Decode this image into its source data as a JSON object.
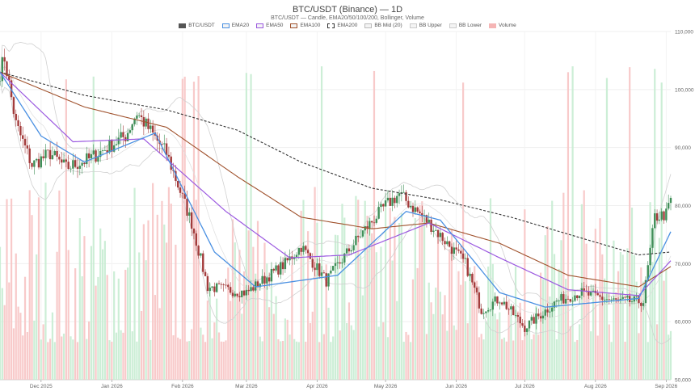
{
  "chart_data": {
    "type": "candlestick",
    "title": "BTC/USDT (Binance) — 1D",
    "subtitle": "BTC/USDT — Candle, EMA20/50/100/200, Bollinger, Volume",
    "legend": [
      {
        "label": "BTC/USDT",
        "color": "#555555",
        "style": "fill"
      },
      {
        "label": "EMA20",
        "color": "#4a90e2",
        "style": "line"
      },
      {
        "label": "EMA50",
        "color": "#9b59e0",
        "style": "line"
      },
      {
        "label": "EMA100",
        "color": "#a0522d",
        "style": "line"
      },
      {
        "label": "EMA200",
        "color": "#333333",
        "style": "dashed"
      },
      {
        "label": "BB Mid (20)",
        "color": "#bbbbbb",
        "style": "line"
      },
      {
        "label": "BB Upper",
        "color": "#cccccc",
        "style": "line"
      },
      {
        "label": "BB Lower",
        "color": "#cccccc",
        "style": "line"
      },
      {
        "label": "Volume",
        "color": "#f5b5b5",
        "style": "fill"
      }
    ],
    "y_axis": {
      "ticks": [
        "50,000",
        "60,000",
        "70,000",
        "80,000",
        "90,000",
        "100,000",
        "110,000"
      ],
      "range": [
        50000,
        110000
      ],
      "position": "right"
    },
    "x_axis": {
      "ticks": [
        "Dec 2025",
        "Jan 2026",
        "Feb 2026",
        "Mar 2026",
        "Apr 2026",
        "May 2026",
        "Jun 2026",
        "Jul 2026",
        "Aug 2026",
        "Sep 2026"
      ],
      "range": [
        "2025-11-13",
        "2026-09-03"
      ]
    },
    "key_prices": [
      {
        "date": "2025-11-13",
        "close": 103000
      },
      {
        "date": "2025-11-15",
        "close": 105500
      },
      {
        "date": "2025-11-20",
        "close": 94000
      },
      {
        "date": "2025-11-27",
        "close": 87000
      },
      {
        "date": "2025-12-05",
        "close": 89000
      },
      {
        "date": "2025-12-12",
        "close": 86500
      },
      {
        "date": "2025-12-22",
        "close": 88000
      },
      {
        "date": "2026-01-07",
        "close": 92000
      },
      {
        "date": "2026-01-12",
        "close": 96000
      },
      {
        "date": "2026-01-25",
        "close": 89000
      },
      {
        "date": "2026-02-05",
        "close": 77000
      },
      {
        "date": "2026-02-12",
        "close": 66000
      },
      {
        "date": "2026-03-01",
        "close": 65000
      },
      {
        "date": "2026-03-18",
        "close": 70000
      },
      {
        "date": "2026-03-25",
        "close": 73000
      },
      {
        "date": "2026-04-05",
        "close": 67000
      },
      {
        "date": "2026-04-20",
        "close": 75000
      },
      {
        "date": "2026-05-01",
        "close": 80000
      },
      {
        "date": "2026-05-07",
        "close": 82000
      },
      {
        "date": "2026-05-20",
        "close": 77000
      },
      {
        "date": "2026-06-05",
        "close": 70000
      },
      {
        "date": "2026-06-12",
        "close": 62000
      },
      {
        "date": "2026-06-20",
        "close": 64000
      },
      {
        "date": "2026-07-01",
        "close": 59000
      },
      {
        "date": "2026-07-15",
        "close": 63500
      },
      {
        "date": "2026-07-25",
        "close": 65000
      },
      {
        "date": "2026-08-10",
        "close": 63500
      },
      {
        "date": "2026-08-22",
        "close": 63500
      },
      {
        "date": "2026-08-27",
        "close": 78000
      },
      {
        "date": "2026-09-01",
        "close": 78500
      },
      {
        "date": "2026-09-03",
        "close": 81000
      }
    ],
    "ema_values": {
      "EMA20": [
        {
          "date": "2025-11-13",
          "value": 103000
        },
        {
          "date": "2025-12-01",
          "value": 92000
        },
        {
          "date": "2025-12-20",
          "value": 87500
        },
        {
          "date": "2026-01-20",
          "value": 92500
        },
        {
          "date": "2026-02-15",
          "value": 72000
        },
        {
          "date": "2026-03-05",
          "value": 66000
        },
        {
          "date": "2026-04-10",
          "value": 68000
        },
        {
          "date": "2026-05-10",
          "value": 79000
        },
        {
          "date": "2026-05-25",
          "value": 77500
        },
        {
          "date": "2026-06-20",
          "value": 65000
        },
        {
          "date": "2026-07-10",
          "value": 62500
        },
        {
          "date": "2026-08-20",
          "value": 64000
        },
        {
          "date": "2026-09-03",
          "value": 75500
        }
      ],
      "EMA50": [
        {
          "date": "2025-11-13",
          "value": 103000
        },
        {
          "date": "2025-12-15",
          "value": 91000
        },
        {
          "date": "2026-01-15",
          "value": 91500
        },
        {
          "date": "2026-02-20",
          "value": 79000
        },
        {
          "date": "2026-03-20",
          "value": 71000
        },
        {
          "date": "2026-04-15",
          "value": 71500
        },
        {
          "date": "2026-05-20",
          "value": 77000
        },
        {
          "date": "2026-06-20",
          "value": 71000
        },
        {
          "date": "2026-07-20",
          "value": 65500
        },
        {
          "date": "2026-08-20",
          "value": 64500
        },
        {
          "date": "2026-09-03",
          "value": 70500
        }
      ],
      "EMA100": [
        {
          "date": "2025-11-13",
          "value": 103000
        },
        {
          "date": "2025-12-20",
          "value": 97000
        },
        {
          "date": "2026-01-25",
          "value": 93500
        },
        {
          "date": "2026-02-25",
          "value": 85000
        },
        {
          "date": "2026-03-25",
          "value": 78000
        },
        {
          "date": "2026-04-25",
          "value": 76000
        },
        {
          "date": "2026-05-20",
          "value": 77000
        },
        {
          "date": "2026-06-20",
          "value": 73500
        },
        {
          "date": "2026-07-20",
          "value": 68000
        },
        {
          "date": "2026-08-20",
          "value": 66000
        },
        {
          "date": "2026-09-03",
          "value": 69500
        }
      ],
      "EMA200": [
        {
          "date": "2025-11-13",
          "value": 103000
        },
        {
          "date": "2025-12-20",
          "value": 99000
        },
        {
          "date": "2026-01-25",
          "value": 96500
        },
        {
          "date": "2026-02-25",
          "value": 93000
        },
        {
          "date": "2026-03-25",
          "value": 87500
        },
        {
          "date": "2026-04-25",
          "value": 83000
        },
        {
          "date": "2026-05-25",
          "value": 81000
        },
        {
          "date": "2026-06-25",
          "value": 78000
        },
        {
          "date": "2026-07-25",
          "value": 74500
        },
        {
          "date": "2026-08-20",
          "value": 71500
        },
        {
          "date": "2026-09-03",
          "value": 72000
        }
      ]
    },
    "volume": {
      "bar_range_max": 100,
      "unit": "relative"
    },
    "grid": true,
    "legend_placement": "top-center"
  }
}
